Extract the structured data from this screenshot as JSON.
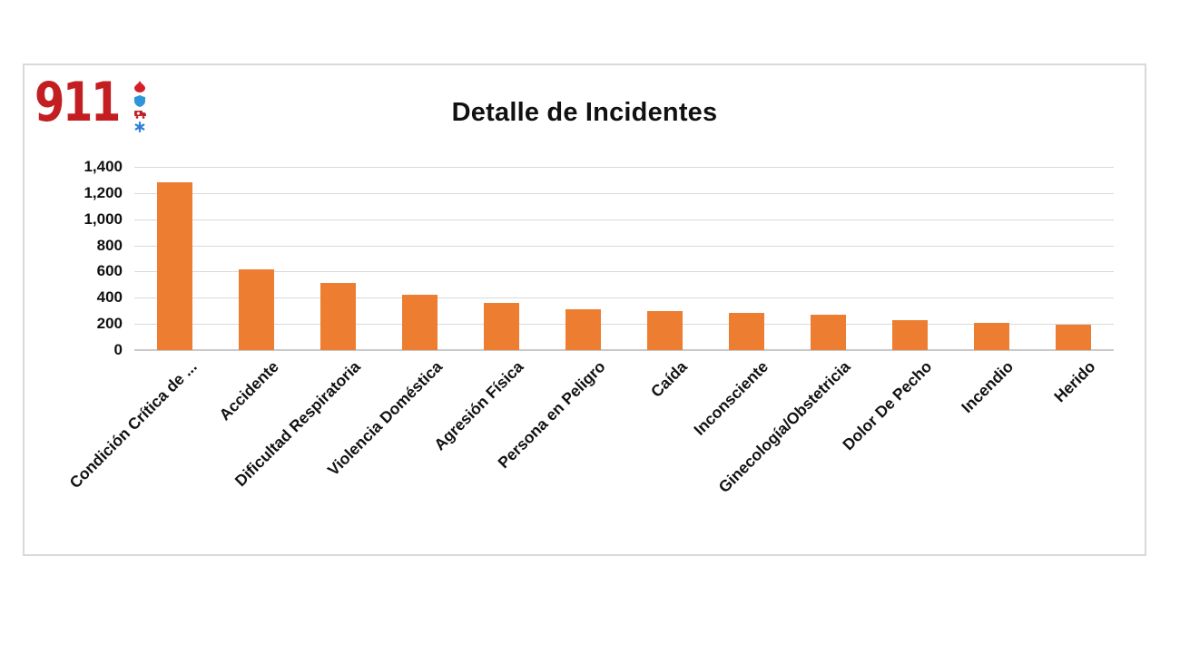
{
  "page": {
    "background": "#FFFFFF"
  },
  "logo": {
    "text": "911",
    "color": "#C31E21",
    "icons": [
      {
        "name": "flame-icon",
        "color": "#D42027"
      },
      {
        "name": "shield-icon",
        "color": "#2E96D8"
      },
      {
        "name": "ambulance-icon",
        "color": "#C32026"
      },
      {
        "name": "star-of-life-icon",
        "color": "#2E7FD8"
      }
    ]
  },
  "chart_data": {
    "type": "bar",
    "title": "Detalle de Incidentes",
    "categories": [
      "Condición Crítica de ...",
      "Accidente",
      "Dificultad Respiratoria",
      "Violencia Doméstica",
      "Agresión Física",
      "Persona en Peligro",
      "Caída",
      "Inconsciente",
      "Ginecología/Obstetricia",
      "Dolor De Pecho",
      "Incendio",
      "Herido"
    ],
    "values": [
      1283,
      620,
      510,
      425,
      358,
      312,
      297,
      286,
      270,
      228,
      206,
      195
    ],
    "xlabel": "",
    "ylabel": "",
    "ylim": [
      0,
      1400
    ],
    "ytick_step": 200,
    "ytick_labels": [
      "0",
      "200",
      "400",
      "600",
      "800",
      "1,000",
      "1,200",
      "1,400"
    ],
    "bar_color": "#ED7D31",
    "gridline_color": "#D9D9D9",
    "axis_line_color": "#C9C9C9",
    "text_color": "#111111",
    "grid": true,
    "legend": "none"
  }
}
